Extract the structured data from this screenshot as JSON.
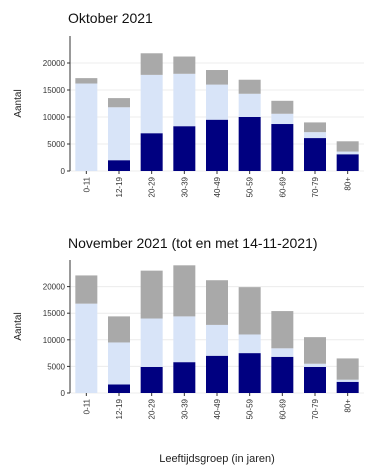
{
  "chart_data": [
    {
      "type": "bar",
      "stacked": true,
      "title": "Oktober 2021",
      "ylabel": "Aantal",
      "xlabel": "",
      "ylim": [
        0,
        25000
      ],
      "yticks": [
        0,
        5000,
        10000,
        15000,
        20000
      ],
      "grid": true,
      "categories": [
        "0-11",
        "12-19",
        "20-29",
        "30-39",
        "40-49",
        "50-59",
        "60-69",
        "70-79",
        "80+"
      ],
      "series": [
        {
          "color": "#000080",
          "values": [
            0,
            2000,
            7000,
            8300,
            9500,
            10000,
            8700,
            6100,
            3100
          ]
        },
        {
          "color": "#d8e4f8",
          "values": [
            16200,
            9800,
            10800,
            9700,
            6500,
            4300,
            1900,
            1100,
            500
          ]
        },
        {
          "color": "#a9a9a9",
          "values": [
            1000,
            1700,
            4000,
            3200,
            2700,
            2600,
            2400,
            1800,
            1900
          ]
        }
      ]
    },
    {
      "type": "bar",
      "stacked": true,
      "title": "November 2021 (tot en met 14-11-2021)",
      "ylabel": "Aantal",
      "xlabel": "Leeftijdsgroep (in jaren)",
      "ylim": [
        0,
        25000
      ],
      "yticks": [
        0,
        5000,
        10000,
        15000,
        20000
      ],
      "grid": true,
      "categories": [
        "0-11",
        "12-19",
        "20-29",
        "30-39",
        "40-49",
        "50-59",
        "60-69",
        "70-79",
        "80+"
      ],
      "series": [
        {
          "color": "#000080",
          "values": [
            0,
            1600,
            4900,
            5800,
            7000,
            7500,
            6800,
            4900,
            2100
          ]
        },
        {
          "color": "#d8e4f8",
          "values": [
            16800,
            7900,
            9100,
            8600,
            5800,
            3500,
            1600,
            600,
            400
          ]
        },
        {
          "color": "#a9a9a9",
          "values": [
            5300,
            4900,
            9000,
            9600,
            8400,
            8900,
            7000,
            5000,
            4000
          ]
        }
      ]
    }
  ]
}
